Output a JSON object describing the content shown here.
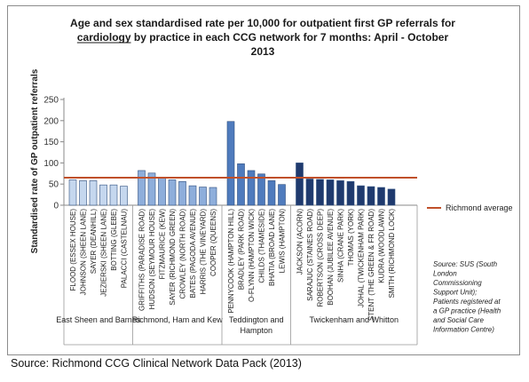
{
  "chart_data": {
    "type": "bar",
    "title_lines": [
      "Age and sex standardised rate per 10,000 for outpatient first GP referrals for",
      "cardiology by practice in each CCG network for 7 months: April - October",
      "2013"
    ],
    "title_underlined_word": "cardiology",
    "ylabel": "Standardised rate of GP outpatient referrals",
    "xlabel": "",
    "ylim": [
      0,
      250
    ],
    "yticks": [
      0,
      50,
      100,
      150,
      200,
      250
    ],
    "grid": false,
    "legend_position": "right",
    "reference_line": {
      "name": "Richmond average",
      "value": 65,
      "color": "#c0502a"
    },
    "groups": [
      {
        "name": "East Sheen and Barnes",
        "fill": "#c5d7ee",
        "categories": [
          "FLOOD (ESSEX HOUSE)",
          "JOHNSON (SHEEN LANE)",
          "SAYER (DEANHILL)",
          "JEZIERSKI (SHEEN LANE)",
          "BOTTING (GLEBE)",
          "PALACCI (CASTELNAU)"
        ],
        "values": [
          60,
          58,
          58,
          48,
          48,
          45
        ]
      },
      {
        "name": "Richmond, Ham and Kew",
        "fill": "#8eaedb",
        "categories": [
          "GRIFFITHS (PARADISE ROAD)",
          "HUDSON (SEYMOUR HOUSE)",
          "FITZMAURICE (KEW)",
          "SAYER (RICHMOND GREEN)",
          "CROWLEY (NORTH ROAD)",
          "BATES (PAGODA AVENUE)",
          "HARRIS (THE VINEYARD)",
          "COOPER (QUEENS)"
        ],
        "values": [
          82,
          76,
          64,
          60,
          56,
          46,
          43,
          42
        ]
      },
      {
        "name": "Teddington and Hampton",
        "name_lines": [
          "Teddington and",
          "Hampton"
        ],
        "fill": "#4f7bbd",
        "categories": [
          "PENNYCOOK (HAMPTON HILL)",
          "BRADLEY (PARK ROAD)",
          "O-FLYNN (HAMPTON WICK)",
          "CHILDS (THAMESIDE)",
          "BHATIA (BROAD LANE)",
          "LEWIS (HAMPTON)"
        ],
        "values": [
          198,
          98,
          82,
          74,
          58,
          49
        ]
      },
      {
        "name": "Twickenham and Whitton",
        "fill": "#1f3a6e",
        "categories": [
          "JACKSON (ACORN)",
          "SARAJUC (STAINES ROAD)",
          "ROBERTSON (CROSS DEEP)",
          "BOOHAN (JUBILEE AVENUE)",
          "SINHA (CRANE PARK)",
          "THOMAS (YORK)",
          "JOHAL (TWICKENHAM PARK)",
          "STENT (THE GREEN & FR ROAD)",
          "KUDRA (WOODLAWN)",
          "SMITH (RICHMOND LOCK)"
        ],
        "values": [
          100,
          62,
          61,
          60,
          58,
          56,
          46,
          44,
          42,
          38
        ]
      }
    ]
  },
  "note_lines": [
    "Source: SUS (South",
    "London",
    "Commissioning",
    "Support Unit);",
    "Patients registered at",
    "a GP practice (Health",
    "and Social Care",
    "Information Centre)"
  ],
  "source_text": "Source: Richmond CCG Clinical Network Data Pack (2013)"
}
